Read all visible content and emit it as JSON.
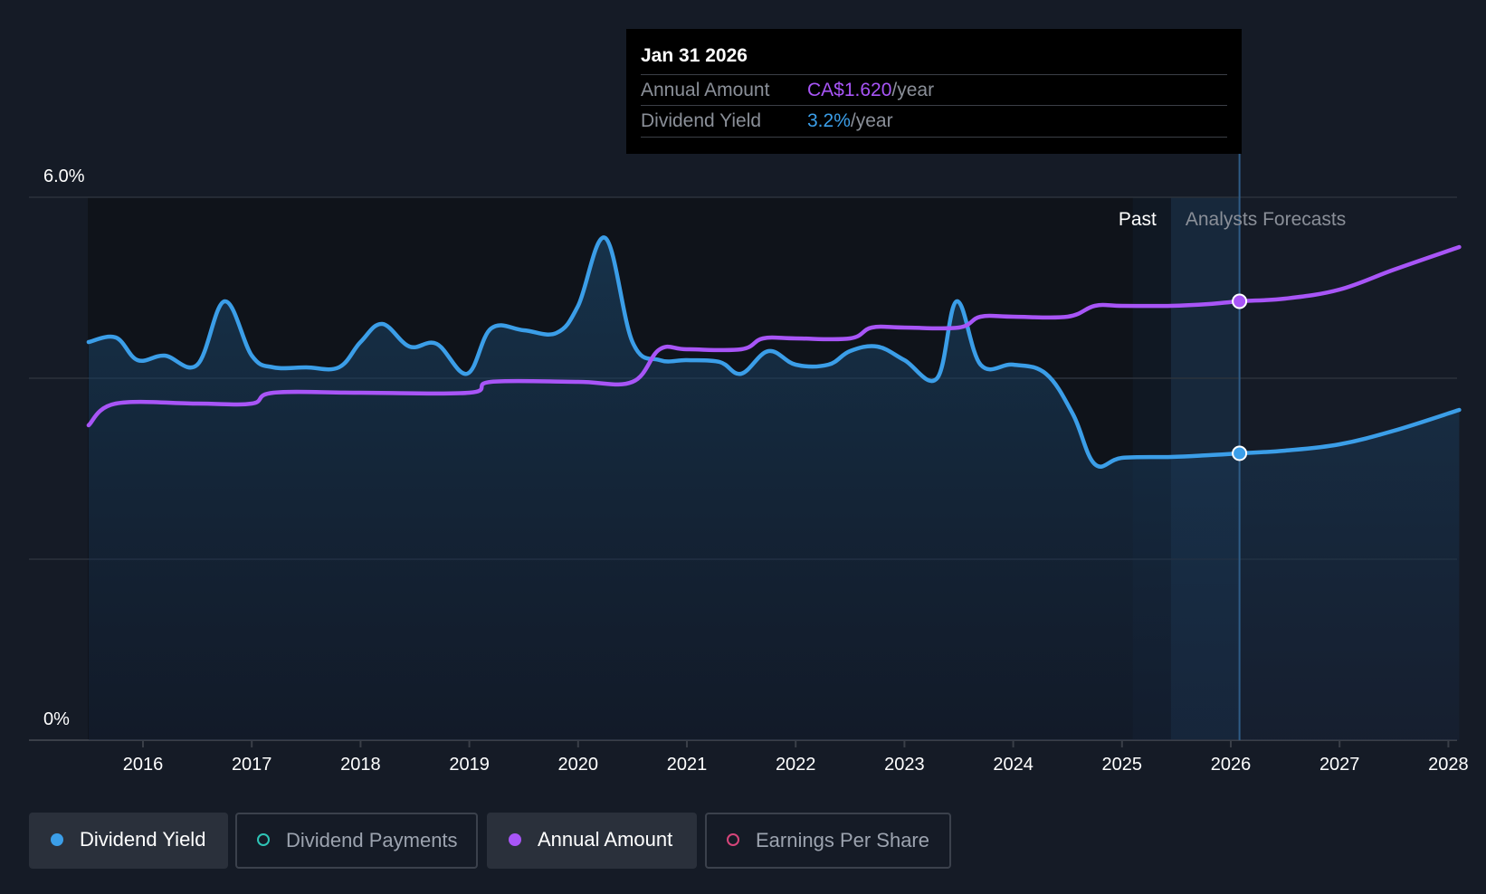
{
  "tooltip": {
    "date": "Jan 31 2026",
    "rows": [
      {
        "label": "Annual Amount",
        "value": "CA$1.620",
        "suffix": "/year"
      },
      {
        "label": "Dividend Yield",
        "value": "3.2%",
        "suffix": "/year"
      }
    ]
  },
  "legend": [
    {
      "label": "Dividend Yield",
      "color": "#3b9ee8",
      "active": true
    },
    {
      "label": "Dividend Payments",
      "color": "#2ec4b6",
      "active": false
    },
    {
      "label": "Annual Amount",
      "color": "#a855f7",
      "active": true
    },
    {
      "label": "Earnings Per Share",
      "color": "#d6457a",
      "active": false
    }
  ],
  "chart_data": {
    "type": "line",
    "y_tick_labels": [
      "6.0%",
      "0%"
    ],
    "ylim": [
      0,
      6.0
    ],
    "xlim": [
      2015.0,
      2028.1
    ],
    "x_tick_labels": [
      "2016",
      "2017",
      "2018",
      "2019",
      "2020",
      "2021",
      "2022",
      "2023",
      "2024",
      "2025",
      "2026",
      "2027",
      "2028"
    ],
    "x_tick_values": [
      2016,
      2017,
      2018,
      2019,
      2020,
      2021,
      2022,
      2023,
      2024,
      2025,
      2026,
      2027,
      2028
    ],
    "grid": true,
    "regions": [
      {
        "label": "Past",
        "start": 2025.1,
        "end": 2025.45
      },
      {
        "label": "Analysts Forecasts",
        "start": 2025.45,
        "end": 2026.08
      }
    ],
    "cursor_x": 2026.08,
    "series": [
      {
        "name": "Dividend Yield",
        "color": "#3b9ee8",
        "filled": true,
        "points": [
          [
            2015.5,
            4.4
          ],
          [
            2015.75,
            4.45
          ],
          [
            2015.95,
            4.2
          ],
          [
            2016.2,
            4.25
          ],
          [
            2016.5,
            4.15
          ],
          [
            2016.75,
            4.85
          ],
          [
            2017.0,
            4.25
          ],
          [
            2017.2,
            4.12
          ],
          [
            2017.5,
            4.12
          ],
          [
            2017.8,
            4.12
          ],
          [
            2018.0,
            4.4
          ],
          [
            2018.2,
            4.6
          ],
          [
            2018.45,
            4.35
          ],
          [
            2018.7,
            4.38
          ],
          [
            2018.98,
            4.05
          ],
          [
            2019.2,
            4.55
          ],
          [
            2019.5,
            4.53
          ],
          [
            2019.8,
            4.5
          ],
          [
            2020.0,
            4.8
          ],
          [
            2020.25,
            5.55
          ],
          [
            2020.5,
            4.4
          ],
          [
            2020.75,
            4.2
          ],
          [
            2021.0,
            4.2
          ],
          [
            2021.3,
            4.18
          ],
          [
            2021.5,
            4.05
          ],
          [
            2021.75,
            4.3
          ],
          [
            2022.0,
            4.15
          ],
          [
            2022.3,
            4.15
          ],
          [
            2022.5,
            4.3
          ],
          [
            2022.75,
            4.35
          ],
          [
            2023.0,
            4.2
          ],
          [
            2023.3,
            4.0
          ],
          [
            2023.48,
            4.85
          ],
          [
            2023.7,
            4.15
          ],
          [
            2024.0,
            4.15
          ],
          [
            2024.3,
            4.05
          ],
          [
            2024.55,
            3.6
          ],
          [
            2024.75,
            3.05
          ],
          [
            2025.0,
            3.12
          ],
          [
            2025.45,
            3.13
          ],
          [
            2025.8,
            3.15
          ],
          [
            2026.08,
            3.17
          ],
          [
            2026.5,
            3.2
          ],
          [
            2027.0,
            3.27
          ],
          [
            2027.5,
            3.42
          ],
          [
            2028.1,
            3.65
          ]
        ]
      },
      {
        "name": "Annual Amount",
        "color": "#a855f7",
        "filled": false,
        "points": [
          [
            2015.5,
            3.48
          ],
          [
            2015.75,
            3.72
          ],
          [
            2016.5,
            3.72
          ],
          [
            2017.0,
            3.72
          ],
          [
            2017.2,
            3.84
          ],
          [
            2018.0,
            3.84
          ],
          [
            2019.0,
            3.84
          ],
          [
            2019.2,
            3.96
          ],
          [
            2020.0,
            3.96
          ],
          [
            2020.5,
            3.96
          ],
          [
            2020.75,
            4.32
          ],
          [
            2021.0,
            4.32
          ],
          [
            2021.5,
            4.32
          ],
          [
            2021.7,
            4.44
          ],
          [
            2022.0,
            4.44
          ],
          [
            2022.5,
            4.44
          ],
          [
            2022.7,
            4.56
          ],
          [
            2023.0,
            4.56
          ],
          [
            2023.5,
            4.56
          ],
          [
            2023.7,
            4.68
          ],
          [
            2024.0,
            4.68
          ],
          [
            2024.5,
            4.68
          ],
          [
            2024.75,
            4.8
          ],
          [
            2025.0,
            4.8
          ],
          [
            2025.45,
            4.8
          ],
          [
            2025.8,
            4.82
          ],
          [
            2026.08,
            4.85
          ],
          [
            2026.5,
            4.88
          ],
          [
            2027.0,
            4.98
          ],
          [
            2027.5,
            5.2
          ],
          [
            2028.1,
            5.45
          ]
        ]
      }
    ]
  }
}
